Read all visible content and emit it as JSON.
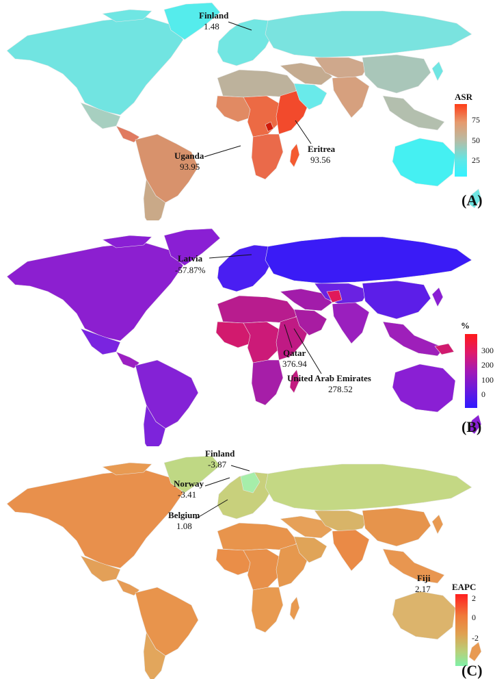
{
  "panels": [
    {
      "id": "A",
      "panel_label": "(A)",
      "legend": {
        "title": "ASR",
        "ticks": [
          "75",
          "50",
          "25"
        ],
        "stops": [
          "#ff3d17",
          "#e69a6d",
          "#b8bba4",
          "#5ce8e8",
          "#33f2ff"
        ]
      },
      "colors": {
        "default": "#6fe6e3",
        "north_america": "#71e4e1",
        "greenland": "#55ecec",
        "mexico": "#a7cfc0",
        "central_america": "#e07a60",
        "south_america": "#d8926c",
        "southern_cone": "#c9a988",
        "africa_north": "#bdb29c",
        "africa_west": "#e18a63",
        "africa_central": "#ec6a44",
        "africa_east": "#f24a2c",
        "africa_south": "#ea6a4a",
        "madagascar": "#f45a30",
        "middle_east": "#c4ab90",
        "arabia": "#69eaea",
        "europe": "#72e6e2",
        "russia": "#7ae3df",
        "central_asia": "#cfa88c",
        "south_asia": "#d6a07e",
        "china": "#a9c6b9",
        "se_asia": "#b3bfae",
        "australia": "#45f0f2",
        "uganda": "#d01a0a"
      },
      "annotations": [
        {
          "name": "Finland",
          "value": "1.48"
        },
        {
          "name": "Uganda",
          "value": "93.95"
        },
        {
          "name": "Eritrea",
          "value": "93.56"
        }
      ]
    },
    {
      "id": "B",
      "panel_label": "(B)",
      "legend": {
        "title": "%",
        "ticks": [
          "300",
          "200",
          "100",
          "0"
        ],
        "stops": [
          "#ff1a1a",
          "#e0196a",
          "#a319b5",
          "#6a1adc",
          "#2e1aff"
        ]
      },
      "colors": {
        "default": "#8a1fd4",
        "north_america": "#8c1fd0",
        "greenland": "#8a1fd4",
        "mexico": "#7a24e0",
        "central_america": "#9b1fc2",
        "south_america": "#8422d6",
        "southern_cone": "#7d23db",
        "africa_north": "#b81c8e",
        "africa_west": "#d21a6e",
        "africa_central": "#cc1a78",
        "africa_east": "#c01a84",
        "africa_south": "#a61ea8",
        "madagascar": "#c31a80",
        "middle_east": "#a21caa",
        "arabia": "#a81ca2",
        "europe": "#4a1ef2",
        "russia": "#3a1bf6",
        "central_asia": "#6a22e2",
        "south_asia": "#9a1fbe",
        "china": "#5c1ee8",
        "se_asia": "#9e1fba",
        "australia": "#8a1fd4",
        "afghanistan": "#e0195a",
        "png": "#d01a6e"
      },
      "annotations": [
        {
          "name": "Latvia",
          "value": "-57.87%"
        },
        {
          "name": "Qatar",
          "value": "376.94"
        },
        {
          "name": "United Arab Emirates",
          "value": "278.52"
        }
      ]
    },
    {
      "id": "C",
      "panel_label": "(C)",
      "legend": {
        "title": "EAPC",
        "ticks": [
          "2",
          "0",
          "-2"
        ],
        "stops": [
          "#ff1f1f",
          "#f07a3a",
          "#e0a050",
          "#b8d07a",
          "#7ff0a8"
        ]
      },
      "colors": {
        "default": "#e89a52",
        "north_america": "#e8904c",
        "greenland": "#bfd884",
        "mexico": "#e3a058",
        "central_america": "#e69c56",
        "south_america": "#e8944c",
        "southern_cone": "#e2a65c",
        "africa_north": "#e8944c",
        "africa_west": "#ea8e48",
        "africa_central": "#e8904a",
        "africa_east": "#e6984e",
        "africa_south": "#e89a50",
        "madagascar": "#e89a50",
        "middle_east": "#e6a058",
        "arabia": "#e0a458",
        "europe": "#c8d07c",
        "russia": "#c4d884",
        "central_asia": "#d8b468",
        "south_asia": "#ea8a46",
        "china": "#e6944c",
        "se_asia": "#e89650",
        "australia": "#dcb46c",
        "nordic": "#a6eeaa"
      },
      "annotations": [
        {
          "name": "Finland",
          "value": "-3.87"
        },
        {
          "name": "Norway",
          "value": "-3.41"
        },
        {
          "name": "Belgium",
          "value": "1.08"
        },
        {
          "name": "Fiji",
          "value": "2.17"
        }
      ]
    }
  ]
}
